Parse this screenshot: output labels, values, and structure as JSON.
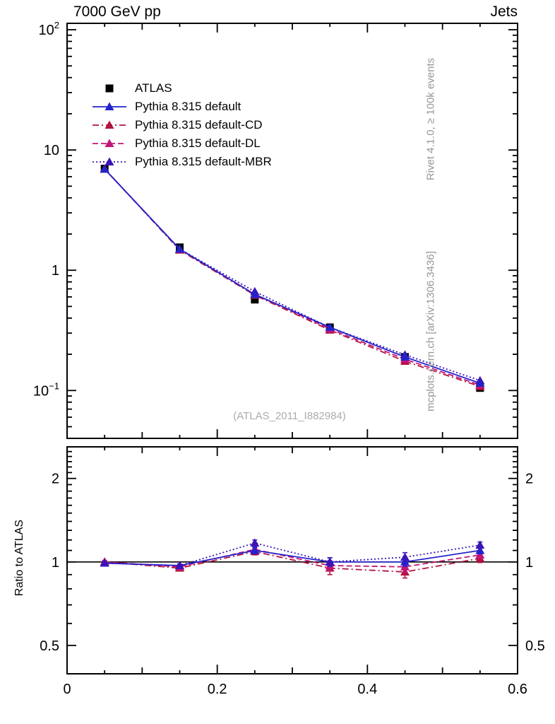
{
  "meta": {
    "title_left": "7000 GeV pp",
    "title_right": "Jets",
    "rivet_note": "Rivet 4.1.0, ≥ 100k events",
    "mcplots_note": "mcplots.cern.ch [arXiv:1306.3436]",
    "watermark": "(ATLAS_2011_I882984)",
    "ratio_ylabel": "Ratio to ATLAS"
  },
  "colors": {
    "axis": "#000000",
    "side_text": "#979797",
    "watermark": "#ababab"
  },
  "chart_data": {
    "type": "line",
    "x": [
      0.05,
      0.15,
      0.25,
      0.35,
      0.45,
      0.55
    ],
    "xlim": [
      0,
      0.6
    ],
    "x_ticks": [
      {
        "v": 0,
        "label": "0"
      },
      {
        "v": 0.2,
        "label": "0.2"
      },
      {
        "v": 0.4,
        "label": "0.4"
      },
      {
        "v": 0.6,
        "label": "0.6"
      }
    ],
    "main": {
      "scale": "log",
      "ylim": [
        0.04,
        113
      ],
      "yticks": [
        {
          "v": 100,
          "base": "10",
          "exp": "2"
        },
        {
          "v": 10,
          "base": "10",
          "exp": ""
        },
        {
          "v": 1,
          "base": "1",
          "exp": ""
        },
        {
          "v": 0.1,
          "base": "10",
          "exp": "−1"
        }
      ]
    },
    "ratio": {
      "scale": "log",
      "ylim": [
        0.395,
        2.6
      ],
      "yticks": [
        {
          "v": 2,
          "label": "2"
        },
        {
          "v": 1,
          "label": "1"
        },
        {
          "v": 0.5,
          "label": "0.5"
        }
      ]
    },
    "series": [
      {
        "name": "ATLAS",
        "kind": "data",
        "color": "#000000",
        "marker": "square",
        "line": "none",
        "values": [
          7.0,
          1.55,
          0.57,
          0.335,
          0.19,
          0.105
        ],
        "yerr": [
          0.15,
          0.04,
          0.02,
          0.012,
          0.008,
          0.005
        ]
      },
      {
        "name": "Pythia 8.315 default",
        "kind": "mc",
        "color": "#2323cc",
        "marker": "triangle",
        "line": "solid",
        "values": [
          6.93,
          1.5,
          0.63,
          0.335,
          0.19,
          0.115
        ],
        "ratio": [
          0.99,
          0.97,
          1.1,
          1.0,
          1.0,
          1.1
        ],
        "ratio_err": [
          0.012,
          0.012,
          0.03,
          0.035,
          0.035,
          0.03
        ]
      },
      {
        "name": "Pythia 8.315 default-CD",
        "kind": "mc",
        "color": "#b3133f",
        "marker": "triangle",
        "line": "dashdot",
        "values": [
          6.97,
          1.47,
          0.62,
          0.318,
          0.175,
          0.108
        ],
        "ratio": [
          1.0,
          0.95,
          1.09,
          0.95,
          0.92,
          1.03
        ],
        "ratio_err": [
          0.012,
          0.015,
          0.03,
          0.05,
          0.045,
          0.035
        ]
      },
      {
        "name": "Pythia 8.315 default-DL",
        "kind": "mc",
        "color": "#c21577",
        "marker": "triangle",
        "line": "dashed",
        "values": [
          6.97,
          1.49,
          0.63,
          0.325,
          0.182,
          0.111
        ],
        "ratio": [
          1.0,
          0.96,
          1.11,
          0.97,
          0.96,
          1.06
        ],
        "ratio_err": [
          0.012,
          0.015,
          0.03,
          0.04,
          0.04,
          0.03
        ]
      },
      {
        "name": "Pythia 8.315 default-MBR",
        "kind": "mc",
        "color": "#3b14b8",
        "marker": "triangle",
        "line": "dotted",
        "values": [
          6.93,
          1.5,
          0.665,
          0.335,
          0.198,
          0.121
        ],
        "ratio": [
          0.99,
          0.97,
          1.17,
          1.0,
          1.04,
          1.15
        ],
        "ratio_err": [
          0.012,
          0.012,
          0.03,
          0.035,
          0.04,
          0.03
        ]
      }
    ]
  }
}
